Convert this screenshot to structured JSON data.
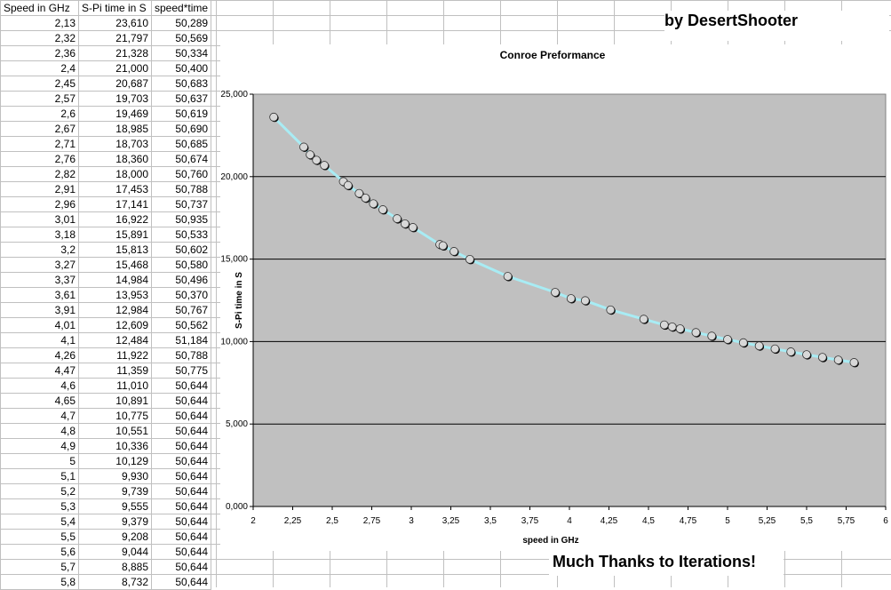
{
  "sheet": {
    "headers": [
      "Speed in GHz",
      "S-Pi time in S",
      "speed*time"
    ],
    "rows": [
      [
        "2,13",
        "23,610",
        "50,289"
      ],
      [
        "2,32",
        "21,797",
        "50,569"
      ],
      [
        "2,36",
        "21,328",
        "50,334"
      ],
      [
        "2,4",
        "21,000",
        "50,400"
      ],
      [
        "2,45",
        "20,687",
        "50,683"
      ],
      [
        "2,57",
        "19,703",
        "50,637"
      ],
      [
        "2,6",
        "19,469",
        "50,619"
      ],
      [
        "2,67",
        "18,985",
        "50,690"
      ],
      [
        "2,71",
        "18,703",
        "50,685"
      ],
      [
        "2,76",
        "18,360",
        "50,674"
      ],
      [
        "2,82",
        "18,000",
        "50,760"
      ],
      [
        "2,91",
        "17,453",
        "50,788"
      ],
      [
        "2,96",
        "17,141",
        "50,737"
      ],
      [
        "3,01",
        "16,922",
        "50,935"
      ],
      [
        "3,18",
        "15,891",
        "50,533"
      ],
      [
        "3,2",
        "15,813",
        "50,602"
      ],
      [
        "3,27",
        "15,468",
        "50,580"
      ],
      [
        "3,37",
        "14,984",
        "50,496"
      ],
      [
        "3,61",
        "13,953",
        "50,370"
      ],
      [
        "3,91",
        "12,984",
        "50,767"
      ],
      [
        "4,01",
        "12,609",
        "50,562"
      ],
      [
        "4,1",
        "12,484",
        "51,184"
      ],
      [
        "4,26",
        "11,922",
        "50,788"
      ],
      [
        "4,47",
        "11,359",
        "50,775"
      ],
      [
        "4,6",
        "11,010",
        "50,644"
      ],
      [
        "4,65",
        "10,891",
        "50,644"
      ],
      [
        "4,7",
        "10,775",
        "50,644"
      ],
      [
        "4,8",
        "10,551",
        "50,644"
      ],
      [
        "4,9",
        "10,336",
        "50,644"
      ],
      [
        "5",
        "10,129",
        "50,644"
      ],
      [
        "5,1",
        "9,930",
        "50,644"
      ],
      [
        "5,2",
        "9,739",
        "50,644"
      ],
      [
        "5,3",
        "9,555",
        "50,644"
      ],
      [
        "5,4",
        "9,379",
        "50,644"
      ],
      [
        "5,5",
        "9,208",
        "50,644"
      ],
      [
        "5,6",
        "9,044",
        "50,644"
      ],
      [
        "5,7",
        "8,885",
        "50,644"
      ],
      [
        "5,8",
        "8,732",
        "50,644"
      ]
    ]
  },
  "author_text": "by DesertShooter",
  "thanks_text": "Much Thanks to Iterations!",
  "colors": {
    "plot_background": "#c0c0c0",
    "line": "#a8ecf4",
    "gridline": "#000000",
    "marker": "#d8d8d8"
  },
  "chart_data": {
    "type": "scatter",
    "title": "Conroe Preformance",
    "xlabel": "speed in GHz",
    "ylabel": "S-Pi time in S",
    "xlim": [
      2,
      6
    ],
    "ylim": [
      0,
      25
    ],
    "x_ticks": [
      "2",
      "2,25",
      "2,5",
      "2,75",
      "3",
      "3,25",
      "3,5",
      "3,75",
      "4",
      "4,25",
      "4,5",
      "4,75",
      "5",
      "5,25",
      "5,5",
      "5,75",
      "6"
    ],
    "y_ticks": [
      "0,000",
      "5,000",
      "10,000",
      "15,000",
      "20,000",
      "25,000"
    ],
    "grid": "horizontal",
    "legend": "none",
    "series": [
      {
        "x": [
          2.13,
          2.32,
          2.36,
          2.4,
          2.45,
          2.57,
          2.6,
          2.67,
          2.71,
          2.76,
          2.82,
          2.91,
          2.96,
          3.01,
          3.18,
          3.2,
          3.27,
          3.37,
          3.61,
          3.91,
          4.01,
          4.1,
          4.26,
          4.47,
          4.6,
          4.65,
          4.7,
          4.8,
          4.9,
          5.0,
          5.1,
          5.2,
          5.3,
          5.4,
          5.5,
          5.6,
          5.7,
          5.8
        ],
        "y": [
          23.61,
          21.797,
          21.328,
          21.0,
          20.687,
          19.703,
          19.469,
          18.985,
          18.703,
          18.36,
          18.0,
          17.453,
          17.141,
          16.922,
          15.891,
          15.813,
          15.468,
          14.984,
          13.953,
          12.984,
          12.609,
          12.484,
          11.922,
          11.359,
          11.01,
          10.891,
          10.775,
          10.551,
          10.336,
          10.129,
          9.93,
          9.739,
          9.555,
          9.379,
          9.208,
          9.044,
          8.885,
          8.732
        ]
      }
    ]
  }
}
